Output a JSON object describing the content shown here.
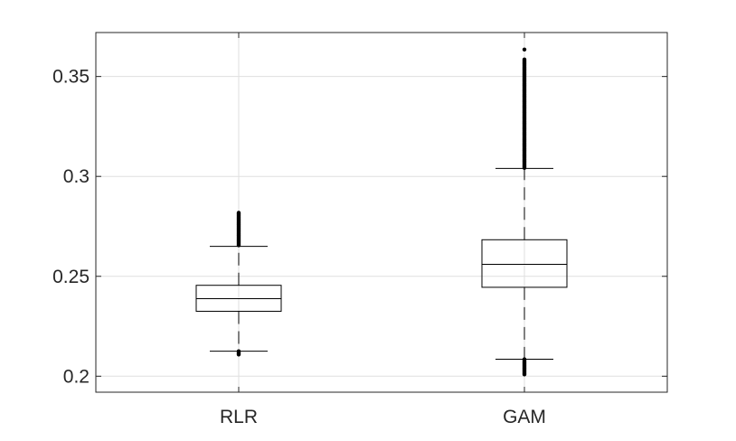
{
  "chart_data": {
    "type": "box",
    "title": "",
    "xlabel": "",
    "ylabel": "",
    "categories": [
      "RLR",
      "GAM"
    ],
    "ylim": [
      0.192,
      0.372
    ],
    "yticks": [
      0.2,
      0.25,
      0.3,
      0.35
    ],
    "ytick_labels": [
      "0.2",
      "0.25",
      "0.3",
      "0.35"
    ],
    "grid": true,
    "boxes": [
      {
        "category": "RLR",
        "whisker_low": 0.2125,
        "q1": 0.2325,
        "median": 0.2388,
        "q3": 0.2455,
        "whisker_high": 0.265,
        "outliers_low_range": [
          0.2105,
          0.2125
        ],
        "outliers_high_range": [
          0.265,
          0.2818
        ]
      },
      {
        "category": "GAM",
        "whisker_low": 0.2085,
        "q1": 0.2445,
        "median": 0.256,
        "q3": 0.2683,
        "whisker_high": 0.304,
        "outliers_low_range": [
          0.2005,
          0.2085
        ],
        "outliers_high_range": [
          0.304,
          0.3585
        ],
        "outliers_extra": [
          0.3635
        ]
      }
    ],
    "colors": {
      "box": "#000000",
      "grid": "#dfdfdf",
      "axis": "#262626",
      "outlier": "#000000"
    }
  }
}
